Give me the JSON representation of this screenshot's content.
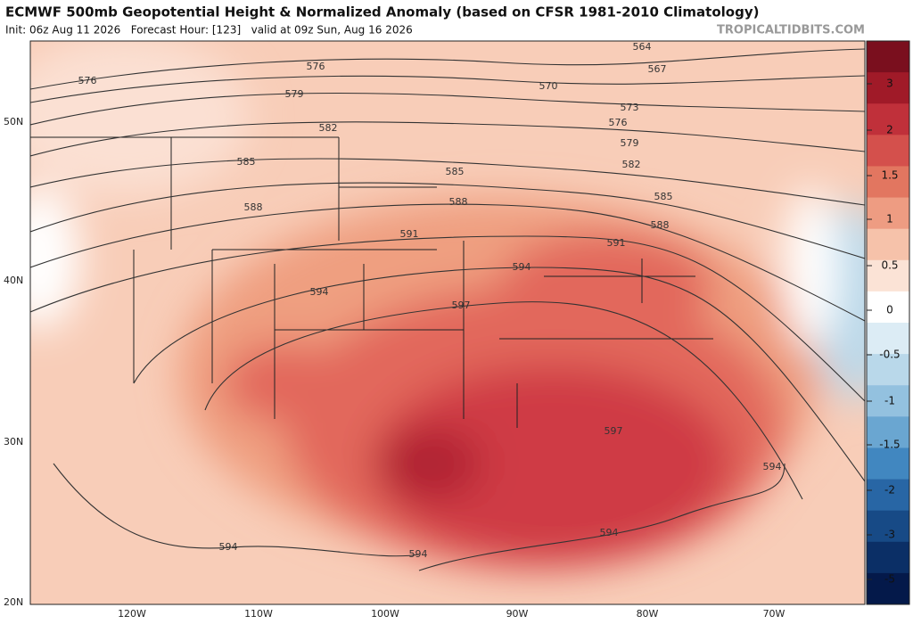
{
  "header": {
    "title": "ECMWF 500mb Geopotential Height & Normalized Anomaly (based on CFSR 1981-2010 Climatology)",
    "subtitle": "Init: 06z Aug 11 2026   Forecast Hour: [123]   valid at 09z Sun, Aug 16 2026",
    "credit": "TROPICALTIDBITS.COM"
  },
  "latitude_labels": [
    "50N",
    "40N",
    "30N",
    "20N"
  ],
  "longitude_labels": [
    "120W",
    "110W",
    "100W",
    "90W",
    "80W",
    "70W"
  ],
  "colorbar_labels": [
    3,
    2,
    1.5,
    1,
    0.5,
    0,
    -0.5,
    -1,
    -1.5,
    -2,
    -3,
    -5
  ],
  "contour_labels": [
    576,
    576,
    579,
    582,
    585,
    585,
    588,
    588,
    591,
    594,
    597,
    594,
    591,
    588,
    585,
    582,
    579,
    576,
    573,
    570,
    567,
    564,
    597,
    594,
    594,
    594,
    594
  ]
}
